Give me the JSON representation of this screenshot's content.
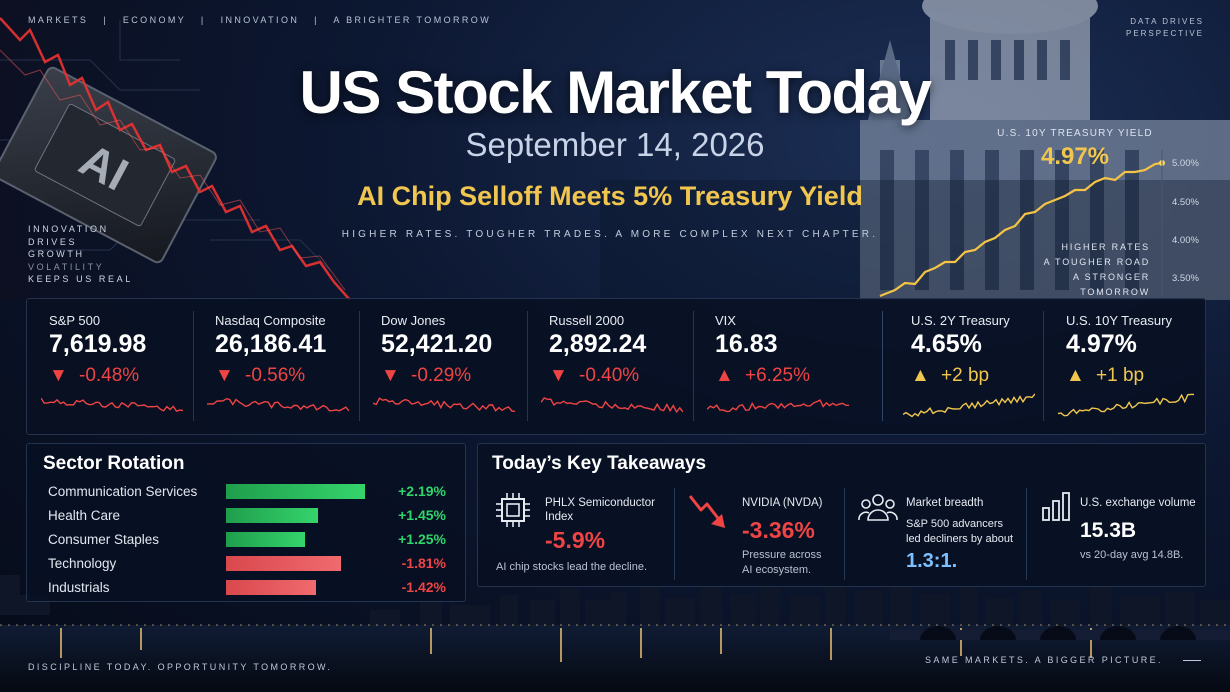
{
  "topnav": [
    "MARKETS",
    "ECONOMY",
    "INNOVATION",
    "A BRIGHTER TOMORROW"
  ],
  "topright": "DATA DRIVES PERSPECTIVE",
  "left_caption": [
    "INNOVATION",
    "DRIVES",
    "GROWTH",
    "VOLATILITY",
    "KEEPS US REAL"
  ],
  "chip_text": "AI",
  "title": "US Stock Market Today",
  "date": "September 14, 2026",
  "headline": "AI Chip Selloff Meets 5% Treasury Yield",
  "tagline": "HIGHER RATES. TOUGHER TRADES. A MORE COMPLEX NEXT CHAPTER.",
  "yield_chart": {
    "label": "U.S. 10Y TREASURY YIELD",
    "value": "4.97%",
    "ticks": [
      "5.00%",
      "4.50%",
      "4.00%",
      "3.50%"
    ],
    "note": [
      "HIGHER RATES",
      "A TOUGHER ROAD",
      "A STRONGER TOMORROW"
    ]
  },
  "quotes": [
    {
      "label": "S&P 500",
      "value": "7,619.98",
      "change": "-0.48%",
      "direction": "down"
    },
    {
      "label": "Nasdaq Composite",
      "value": "26,186.41",
      "change": "-0.56%",
      "direction": "down"
    },
    {
      "label": "Dow Jones",
      "value": "52,421.20",
      "change": "-0.29%",
      "direction": "down"
    },
    {
      "label": "Russell 2000",
      "value": "2,892.24",
      "change": "-0.40%",
      "direction": "down"
    },
    {
      "label": "VIX",
      "value": "16.83",
      "change": "+6.25%",
      "direction": "up"
    },
    {
      "label": "U.S. 2Y Treasury",
      "value": "4.65%",
      "change": "+2 bp",
      "direction": "up-yield"
    },
    {
      "label": "U.S. 10Y Treasury",
      "value": "4.97%",
      "change": "+1 bp",
      "direction": "up-yield"
    }
  ],
  "sector": {
    "title": "Sector Rotation",
    "rows": [
      {
        "name": "Communication Services",
        "value": "+2.19%",
        "pct": 2.19,
        "positive": true
      },
      {
        "name": "Health Care",
        "value": "+1.45%",
        "pct": 1.45,
        "positive": true
      },
      {
        "name": "Consumer Staples",
        "value": "+1.25%",
        "pct": 1.25,
        "positive": true
      },
      {
        "name": "Technology",
        "value": "-1.81%",
        "pct": 1.81,
        "positive": false
      },
      {
        "name": "Industrials",
        "value": "-1.42%",
        "pct": 1.42,
        "positive": false
      }
    ]
  },
  "takeaways": {
    "title": "Today’s Key Takeaways",
    "items": [
      {
        "icon": "chip-icon",
        "title": [
          "PHLX Semiconductor",
          "Index"
        ],
        "big": "-5.9%",
        "sub": [
          "AI chip stocks lead the decline."
        ]
      },
      {
        "icon": "down-arrow-icon",
        "title": [
          "NVIDIA (NVDA)"
        ],
        "big": "-3.36%",
        "sub": [
          "Pressure across",
          "AI ecosystem."
        ]
      },
      {
        "icon": "people-icon",
        "title": [
          "Market breadth"
        ],
        "sub_top": [
          "S&P 500 advancers",
          "led decliners by about"
        ],
        "big": "1.3:1."
      },
      {
        "icon": "bar-chart-icon",
        "title": [
          "U.S. exchange volume"
        ],
        "big": "15.3B",
        "sub": [
          "vs 20-day avg 14.8B."
        ]
      }
    ]
  },
  "colors": {
    "up": "#2fd46b",
    "down": "#ef4444",
    "gold": "#f0c64e",
    "blue": "#6fb6ff"
  },
  "footer_left": "DISCIPLINE TODAY. OPPORTUNITY TOMORROW.",
  "footer_right": "SAME MARKETS. A BIGGER PICTURE."
}
